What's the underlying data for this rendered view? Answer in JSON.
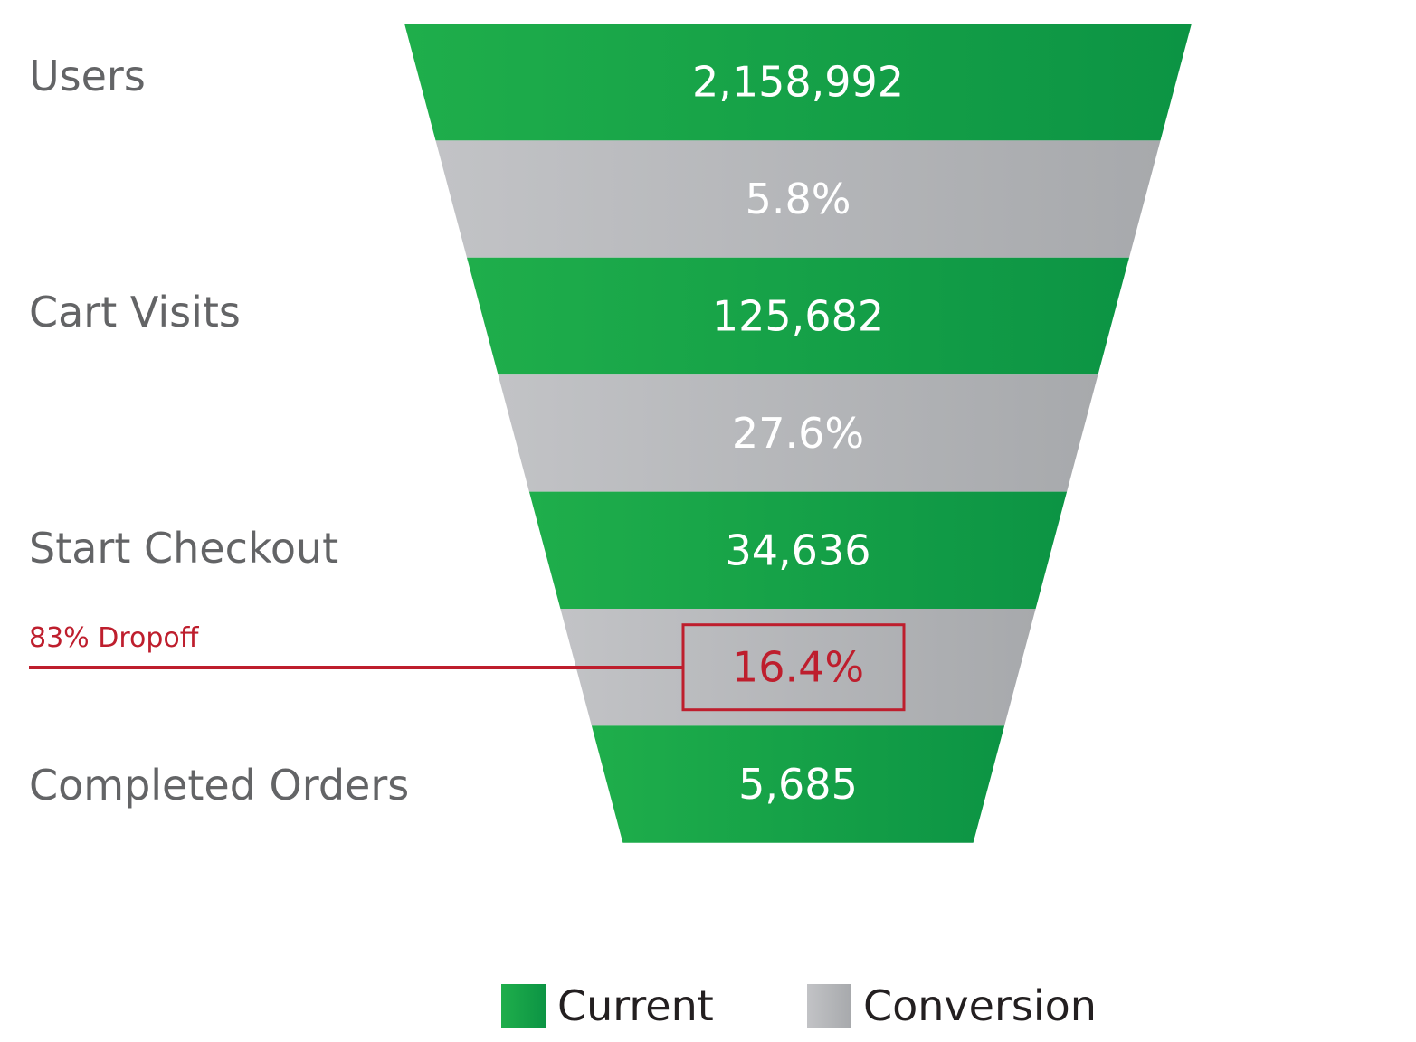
{
  "colors": {
    "current_light": "#1fae4b",
    "current_dark": "#0c9444",
    "conversion_light": "#c2c3c6",
    "conversion_dark": "#a7a9ac",
    "stage_label": "#636466",
    "highlight": "#be1e2d",
    "legend_text": "#231f20"
  },
  "annotation": {
    "label": "83% Dropoff",
    "target_band": 5
  },
  "chart_data": {
    "type": "funnel",
    "stages": [
      {
        "label": "Users",
        "value": 2158992,
        "value_label": "2,158,992"
      },
      {
        "label": "Cart Visits",
        "value": 125682,
        "value_label": "125,682"
      },
      {
        "label": "Start Checkout",
        "value": 34636,
        "value_label": "34,636"
      },
      {
        "label": "Completed Orders",
        "value": 5685,
        "value_label": "5,685"
      }
    ],
    "conversions": [
      {
        "value": 5.8,
        "value_label": "5.8%"
      },
      {
        "value": 27.6,
        "value_label": "27.6%"
      },
      {
        "value": 16.4,
        "value_label": "16.4%",
        "highlighted": true
      }
    ],
    "legend": [
      {
        "key": "current",
        "label": "Current"
      },
      {
        "key": "conversion",
        "label": "Conversion"
      }
    ]
  }
}
